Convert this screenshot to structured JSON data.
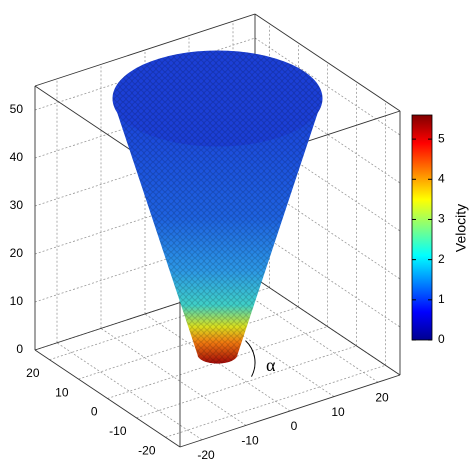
{
  "chart_data": {
    "type": "scatter3d",
    "xlim": [
      -25,
      25
    ],
    "xticks": [
      -20,
      -10,
      0,
      10,
      20
    ],
    "ylim": [
      -25,
      25
    ],
    "yticks": [
      -20,
      -10,
      0,
      10,
      20
    ],
    "zlim": [
      0,
      55
    ],
    "zticks": [
      0,
      10,
      20,
      30,
      40,
      50
    ],
    "grid": true,
    "annotation": "α",
    "colorbar": {
      "label": "Velocity",
      "lim": [
        0,
        5.6
      ],
      "ticks": [
        0,
        1,
        2,
        3,
        4,
        5
      ],
      "colormap": "jet"
    }
  }
}
